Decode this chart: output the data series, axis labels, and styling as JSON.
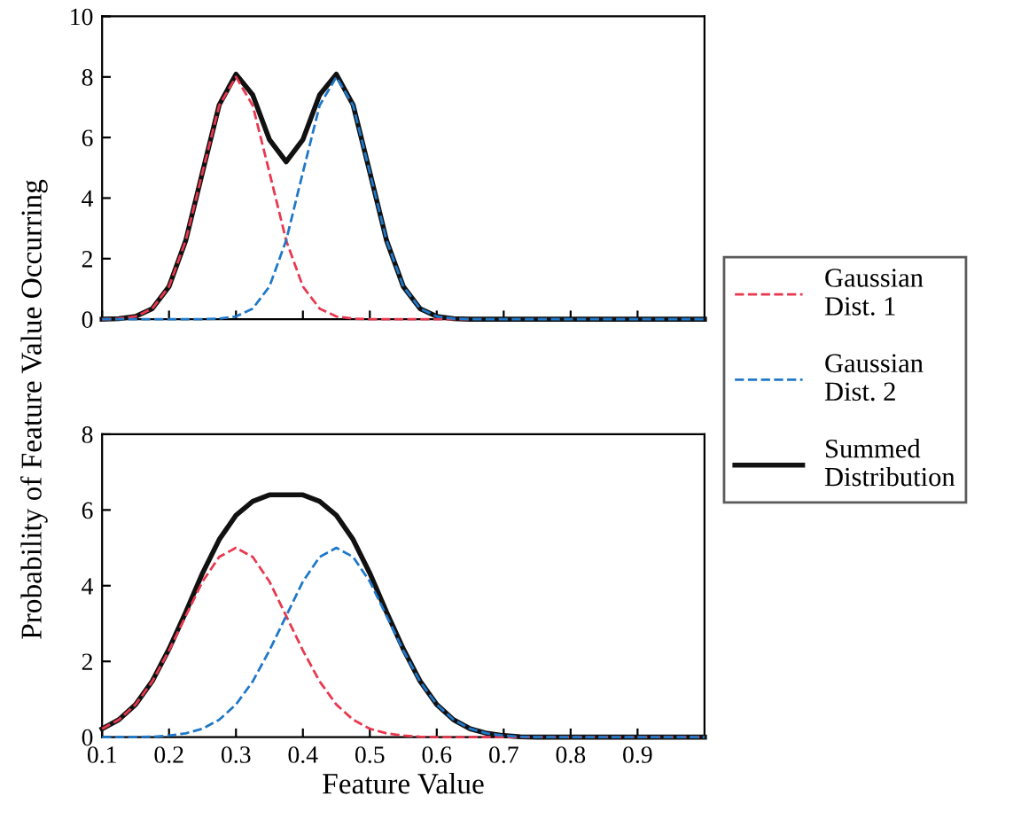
{
  "chart_data": [
    {
      "type": "line",
      "ylabel": "Probability of Feature Value Occurring",
      "x": [
        0.1,
        0.125,
        0.15,
        0.175,
        0.2,
        0.225,
        0.25,
        0.275,
        0.3,
        0.325,
        0.35,
        0.375,
        0.4,
        0.425,
        0.45,
        0.475,
        0.5,
        0.525,
        0.55,
        0.575,
        0.6,
        0.625,
        0.65,
        0.675,
        0.7,
        0.75,
        0.8,
        0.9,
        1.0
      ],
      "series": [
        {
          "name": "Gaussian\nDist. 1",
          "color": "#e8384f",
          "line_style": "dashed",
          "values": [
            0,
            0.02,
            0.09,
            0.35,
            1.08,
            2.6,
            4.85,
            7.06,
            8,
            7.06,
            4.85,
            2.6,
            1.08,
            0.35,
            0.09,
            0.02,
            0,
            0,
            0,
            0,
            0,
            0,
            0,
            null,
            null,
            null,
            null,
            null,
            null
          ]
        },
        {
          "name": "Gaussian\nDist. 2",
          "color": "#1f78c8",
          "line_style": "dashed",
          "values": [
            0,
            0,
            0,
            0,
            0,
            0,
            0,
            0.02,
            0.09,
            0.35,
            1.08,
            2.6,
            4.85,
            7.06,
            8,
            7.06,
            4.85,
            2.6,
            1.08,
            0.35,
            0.09,
            0.02,
            0,
            0,
            0,
            0,
            0,
            0,
            0
          ]
        },
        {
          "name": "Summed\nDistribution",
          "color": "#111111",
          "line_style": "solid",
          "values": [
            0,
            0.02,
            0.09,
            0.35,
            1.08,
            2.6,
            4.85,
            7.08,
            8.09,
            7.41,
            5.93,
            5.2,
            5.93,
            7.41,
            8.09,
            7.08,
            4.85,
            2.6,
            1.08,
            0.35,
            0.09,
            0.02,
            0,
            0,
            0,
            0,
            0,
            0,
            0
          ]
        }
      ],
      "xlim": [
        0.1,
        1.0
      ],
      "xticks": [
        0.1,
        0.2,
        0.3,
        0.4,
        0.5,
        0.6,
        0.7,
        0.8,
        0.9
      ],
      "ylim": [
        0,
        10
      ],
      "yticks": [
        0,
        2,
        4,
        6,
        8,
        10
      ],
      "tick_labels": "y",
      "legend": "right",
      "grid": false
    },
    {
      "type": "line",
      "xlabel": "Feature Value",
      "x": [
        0.1,
        0.125,
        0.15,
        0.175,
        0.2,
        0.225,
        0.25,
        0.275,
        0.3,
        0.325,
        0.35,
        0.375,
        0.4,
        0.425,
        0.45,
        0.475,
        0.5,
        0.525,
        0.55,
        0.575,
        0.6,
        0.625,
        0.65,
        0.675,
        0.7,
        0.725,
        0.75,
        0.8,
        0.9,
        1.0
      ],
      "series": [
        {
          "color": "#e8384f",
          "line_style": "dashed",
          "values": [
            0.22,
            0.46,
            0.86,
            1.47,
            2.29,
            3.2,
            4.11,
            4.76,
            5,
            4.76,
            4.11,
            3.2,
            2.29,
            1.47,
            0.86,
            0.46,
            0.22,
            0.1,
            0.04,
            0.01,
            0,
            0,
            0,
            0,
            0,
            0,
            0,
            0,
            0,
            0
          ]
        },
        {
          "color": "#1f78c8",
          "line_style": "dashed",
          "values": [
            0,
            0,
            0,
            0.01,
            0.04,
            0.1,
            0.22,
            0.46,
            0.86,
            1.47,
            2.29,
            3.2,
            4.11,
            4.76,
            5,
            4.76,
            4.11,
            3.2,
            2.29,
            1.47,
            0.86,
            0.46,
            0.22,
            0.1,
            0.04,
            0.01,
            0,
            0,
            0,
            0
          ]
        },
        {
          "color": "#111111",
          "line_style": "solid",
          "values": [
            0.22,
            0.46,
            0.86,
            1.48,
            2.33,
            3.3,
            4.33,
            5.22,
            5.86,
            6.23,
            6.4,
            6.4,
            6.4,
            6.23,
            5.86,
            5.22,
            4.33,
            3.3,
            2.33,
            1.48,
            0.86,
            0.46,
            0.22,
            0.1,
            0.04,
            0.01,
            0,
            0,
            0,
            0
          ]
        }
      ],
      "xlim": [
        0.1,
        1.0
      ],
      "xticks": [
        0.1,
        0.2,
        0.3,
        0.4,
        0.5,
        0.6,
        0.7,
        0.8,
        0.9
      ],
      "ylim": [
        0,
        8
      ],
      "yticks": [
        0,
        2,
        4,
        6,
        8
      ],
      "grid": false
    }
  ]
}
